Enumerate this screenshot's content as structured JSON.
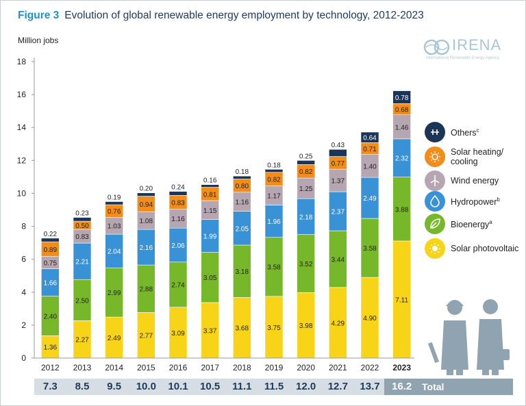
{
  "figure": {
    "label": "Figure 3",
    "title": "Evolution of global renewable energy employment by technology, 2012-2023"
  },
  "logo": {
    "name": "IRENA",
    "subtitle": "International Renewable Energy Agency"
  },
  "chart_data": {
    "type": "bar",
    "stacked": true,
    "ylabel": "Million jobs",
    "ylim": [
      0,
      18
    ],
    "yticks": [
      0,
      2,
      4,
      6,
      8,
      10,
      12,
      14,
      16,
      18
    ],
    "grid": false,
    "legend_position": "right",
    "categories": [
      "2012",
      "2013",
      "2014",
      "2015",
      "2016",
      "2017",
      "2018",
      "2019",
      "2020",
      "2021",
      "2022",
      "2023"
    ],
    "series": [
      {
        "name": "Solar photovoltaic",
        "color": "#f7d417",
        "values": [
          1.36,
          2.27,
          2.49,
          2.77,
          3.09,
          3.37,
          3.68,
          3.75,
          3.98,
          4.29,
          4.9,
          7.11
        ],
        "labels": [
          "1.36",
          "2.27",
          "2.49",
          "2.77",
          "3.09",
          "3.37",
          "3.68",
          "3.75",
          "3.98",
          "4.29",
          "4.90",
          "7.11"
        ]
      },
      {
        "name": "Bioenergy",
        "color": "#77b82a",
        "values": [
          2.4,
          2.5,
          2.99,
          2.88,
          2.74,
          3.05,
          3.18,
          3.58,
          3.52,
          3.44,
          3.58,
          3.88
        ],
        "labels": [
          "2.40",
          "2.50",
          "2.99",
          "2.88",
          "2.74",
          "3.05",
          "3.18",
          "3.58",
          "3.52",
          "3.44",
          "3.58",
          "3.88"
        ]
      },
      {
        "name": "Hydropower",
        "color": "#3a92d6",
        "values": [
          1.66,
          2.21,
          2.04,
          2.16,
          2.06,
          1.99,
          2.05,
          1.96,
          2.18,
          2.37,
          2.49,
          2.32
        ],
        "labels": [
          "1.66",
          "2.21",
          "2.04",
          "2.16",
          "2.06",
          "1.99",
          "2.05",
          "1.96",
          "2.18",
          "2.37",
          "2.49",
          "2.32"
        ]
      },
      {
        "name": "Wind energy",
        "color": "#b6a6b1",
        "values": [
          0.75,
          0.83,
          1.03,
          1.08,
          1.16,
          1.15,
          1.16,
          1.17,
          1.25,
          1.37,
          1.4,
          1.46
        ],
        "labels": [
          "0.75",
          "0.83",
          "1.03",
          "1.08",
          "1.16",
          "1.15",
          "1.16",
          "1.17",
          "1.25",
          "1.37",
          "1.40",
          "1.46"
        ]
      },
      {
        "name": "Solar heating/cooling",
        "color": "#f28c1b",
        "values": [
          0.89,
          0.5,
          0.76,
          0.94,
          0.83,
          0.81,
          0.8,
          0.82,
          0.82,
          0.77,
          0.71,
          0.68
        ],
        "labels": [
          "0.89",
          "0.50",
          "0.76",
          "0.94",
          "0.83",
          "0.81",
          "0.80",
          "0.82",
          "0.82",
          "0.77",
          "0.71",
          "0.68"
        ]
      },
      {
        "name": "Others",
        "color": "#1c3557",
        "values": [
          0.22,
          0.23,
          0.19,
          0.2,
          0.24,
          0.16,
          0.18,
          0.18,
          0.25,
          0.43,
          0.64,
          0.78
        ],
        "labels": [
          "0.22",
          "0.23",
          "0.19",
          "0.20",
          "0.24",
          "0.16",
          "0.18",
          "0.18",
          "0.25",
          "0.43",
          "0.64",
          "0.78"
        ]
      }
    ],
    "totals_label": "Total",
    "totals": [
      "7.3",
      "8.5",
      "9.5",
      "10.0",
      "10.1",
      "10.5",
      "11.1",
      "11.5",
      "12.0",
      "12.7",
      "13.7",
      "16.2"
    ]
  },
  "legend": [
    {
      "label": "Others",
      "sup": "c",
      "color": "#1c3557",
      "icon": "plug-icon"
    },
    {
      "label": "Solar heating/ cooling",
      "sup": "",
      "color": "#f28c1b",
      "icon": "sun-outline-icon"
    },
    {
      "label": "Wind energy",
      "sup": "",
      "color": "#b6a6b1",
      "icon": "wind-turbine-icon"
    },
    {
      "label": "Hydropower",
      "sup": "b",
      "color": "#3a92d6",
      "icon": "water-drop-icon"
    },
    {
      "label": "Bioenergy",
      "sup": "a",
      "color": "#77b82a",
      "icon": "leaf-icon"
    },
    {
      "label": "Solar photovoltaic",
      "sup": "",
      "color": "#f7d417",
      "icon": "sun-icon"
    }
  ]
}
